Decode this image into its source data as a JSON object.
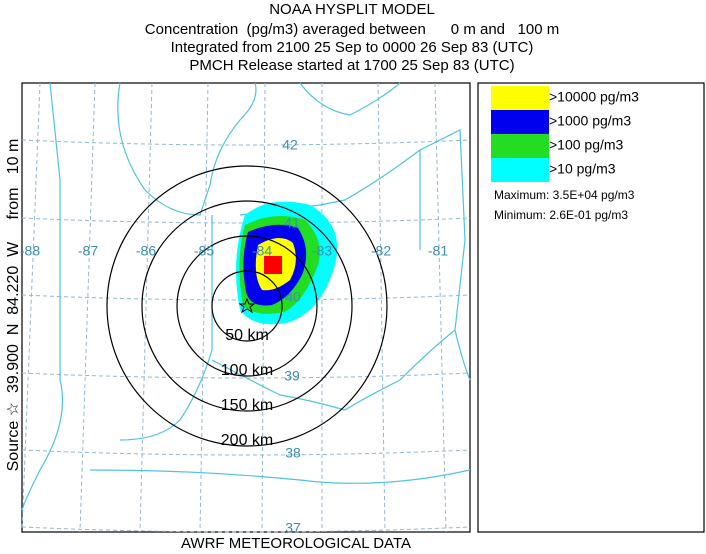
{
  "title": [
    "NOAA HYSPLIT MODEL",
    "Concentration  (pg/m3) averaged between      0 m and   100 m",
    "Integrated from 2100 25 Sep to 0000 26 Sep 83 (UTC)",
    "PMCH Release started at 1700 25 Sep 83 (UTC)"
  ],
  "side_label": "Source ☆  39.900  N  84.220  W     from   10 m",
  "map": {
    "lon_labels": [
      "-88",
      "-87",
      "-86",
      "-85",
      "-84",
      "-83",
      "-82",
      "-81"
    ],
    "lat_labels": [
      "42",
      "41",
      "40",
      "39",
      "38",
      "37"
    ],
    "rings": [
      "50 km",
      "100 km",
      "150 km",
      "200 km"
    ]
  },
  "legend": {
    "entries": [
      {
        "label": ">10000 pg/m3",
        "color": "#ffff00"
      },
      {
        "label": ">1000 pg/m3",
        "color": "#0000ee"
      },
      {
        "label": ">100 pg/m3",
        "color": "#22dd22"
      },
      {
        "label": ">10 pg/m3",
        "color": "#00ffff"
      }
    ],
    "maximum": "Maximum: 3.5E+04 pg/m3",
    "minimum": "Minimum: 2.6E-01 pg/m3"
  },
  "footer": "AWRF METEOROLOGICAL DATA"
}
